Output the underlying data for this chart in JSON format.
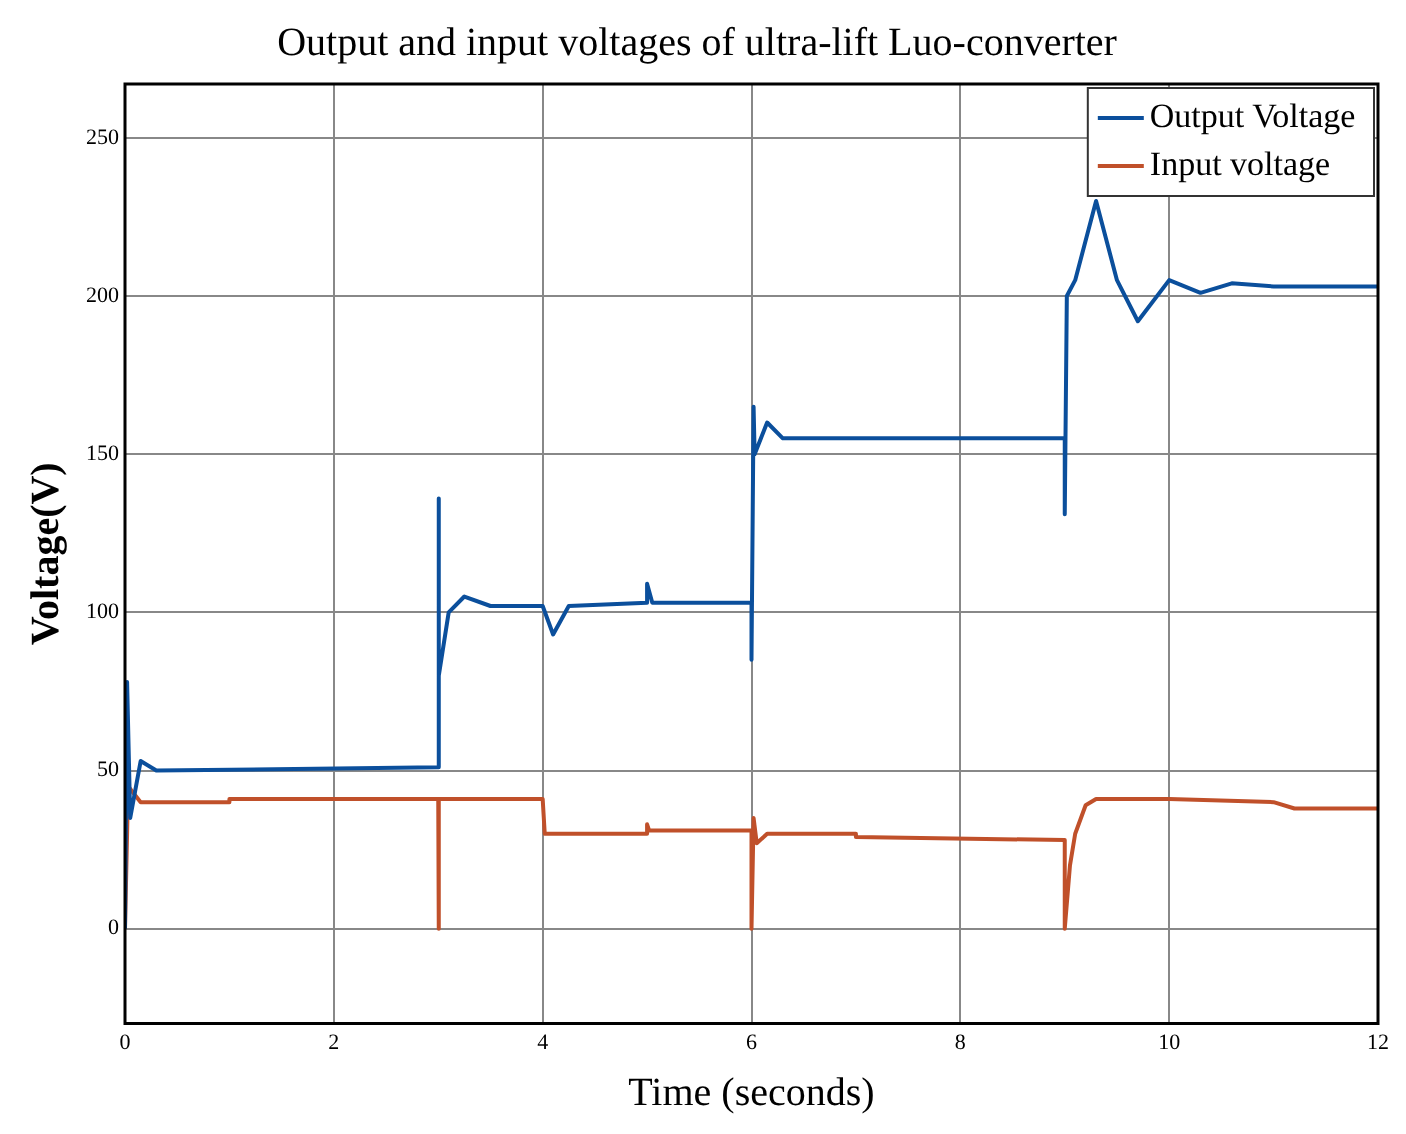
{
  "chart_data": {
    "type": "line",
    "title": "Output and input voltages of ultra-lift Luo-converter",
    "xlabel": "Time (seconds)",
    "ylabel": "Voltage(V)",
    "xlim": [
      0,
      12
    ],
    "xticks": [
      0,
      2,
      4,
      6,
      8,
      10,
      12
    ],
    "ylim": [
      -30,
      267
    ],
    "yticks": [
      0,
      50,
      100,
      150,
      200,
      250
    ],
    "grid": true,
    "legend": "top right",
    "marker": "none",
    "line_style": "solid",
    "series": [
      {
        "name": "Output Voltage",
        "color": "#0b4f9c",
        "x": [
          0,
          0.02,
          0.05,
          0.15,
          0.3,
          3.0,
          3.0,
          3.01,
          3.1,
          3.25,
          3.5,
          4.0,
          4.1,
          4.25,
          5.0,
          5.0,
          5.05,
          6.0,
          6.0,
          6.02,
          6.03,
          6.15,
          6.3,
          9.0,
          9.0,
          9.02,
          9.1,
          9.3,
          9.5,
          9.7,
          10.0,
          10.3,
          10.6,
          11,
          12
        ],
        "values": [
          0,
          78,
          35,
          53,
          50,
          51,
          136,
          80,
          100,
          105,
          102,
          102,
          93,
          102,
          103,
          109,
          103,
          103,
          85,
          165,
          150,
          160,
          155,
          155,
          131,
          200,
          205,
          230,
          205,
          192,
          205,
          201,
          204,
          203,
          203
        ]
      },
      {
        "name": "Input voltage",
        "color": "#c0502a",
        "x": [
          0,
          0.03,
          0.15,
          1,
          1,
          3.0,
          3.0,
          3.01,
          4.0,
          4.02,
          5.0,
          5.0,
          5.02,
          6.0,
          6.0,
          6.02,
          6.05,
          6.15,
          7,
          7,
          9,
          9,
          9.05,
          9.1,
          9.2,
          9.3,
          10,
          11,
          11.2,
          12
        ],
        "values": [
          0,
          45,
          40,
          40,
          41,
          41,
          0,
          41,
          41,
          30,
          30,
          33,
          31,
          31,
          0,
          35,
          27,
          30,
          30,
          29,
          28,
          0,
          20,
          30,
          39,
          41,
          41,
          40,
          38,
          38
        ]
      }
    ]
  }
}
